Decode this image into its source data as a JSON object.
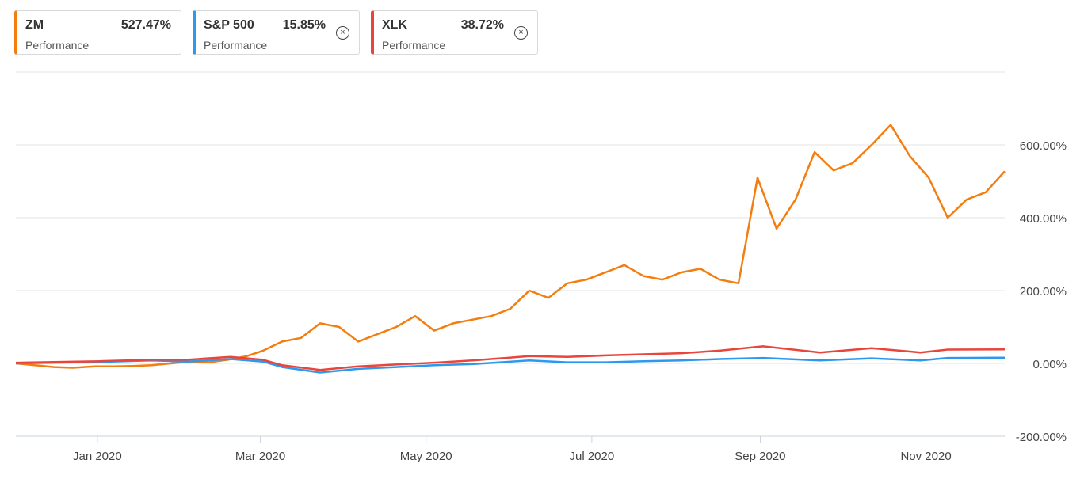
{
  "legend": [
    {
      "symbol": "ZM",
      "value": "527.47%",
      "sublabel": "Performance",
      "color": "#f47d0f",
      "removable": false
    },
    {
      "symbol": "S&P 500",
      "value": "15.85%",
      "sublabel": "Performance",
      "color": "#2c98f0",
      "removable": true
    },
    {
      "symbol": "XLK",
      "value": "38.72%",
      "sublabel": "Performance",
      "color": "#e8463c",
      "removable": true
    }
  ],
  "close_glyph": "⊗",
  "chart_data": {
    "type": "line",
    "x_labels": [
      "Jan 2020",
      "Mar 2020",
      "May 2020",
      "Jul 2020",
      "Sep 2020",
      "Nov 2020"
    ],
    "y_tick_labels": [
      "600.00%",
      "400.00%",
      "200.00%",
      "0.00%",
      "-200.00%"
    ],
    "y_ticks": [
      600,
      400,
      200,
      0,
      -200
    ],
    "ylim": [
      -200,
      800
    ],
    "grid": true,
    "series": [
      {
        "name": "ZM",
        "color": "#f47d0f",
        "points": [
          [
            "2019-12-02",
            0
          ],
          [
            "2019-12-09",
            -5
          ],
          [
            "2019-12-16",
            -10
          ],
          [
            "2019-12-23",
            -12
          ],
          [
            "2019-12-31",
            -8
          ],
          [
            "2020-01-07",
            -8
          ],
          [
            "2020-01-14",
            -7
          ],
          [
            "2020-01-21",
            -5
          ],
          [
            "2020-01-28",
            0
          ],
          [
            "2020-02-04",
            5
          ],
          [
            "2020-02-11",
            3
          ],
          [
            "2020-02-18",
            10
          ],
          [
            "2020-02-25",
            20
          ],
          [
            "2020-03-02",
            35
          ],
          [
            "2020-03-09",
            60
          ],
          [
            "2020-03-16",
            70
          ],
          [
            "2020-03-23",
            110
          ],
          [
            "2020-03-30",
            100
          ],
          [
            "2020-04-06",
            60
          ],
          [
            "2020-04-13",
            80
          ],
          [
            "2020-04-20",
            100
          ],
          [
            "2020-04-27",
            130
          ],
          [
            "2020-05-04",
            90
          ],
          [
            "2020-05-11",
            110
          ],
          [
            "2020-05-18",
            120
          ],
          [
            "2020-05-25",
            130
          ],
          [
            "2020-06-01",
            150
          ],
          [
            "2020-06-08",
            200
          ],
          [
            "2020-06-15",
            180
          ],
          [
            "2020-06-22",
            220
          ],
          [
            "2020-06-29",
            230
          ],
          [
            "2020-07-06",
            250
          ],
          [
            "2020-07-13",
            270
          ],
          [
            "2020-07-20",
            240
          ],
          [
            "2020-07-27",
            230
          ],
          [
            "2020-08-03",
            250
          ],
          [
            "2020-08-10",
            260
          ],
          [
            "2020-08-17",
            230
          ],
          [
            "2020-08-24",
            220
          ],
          [
            "2020-08-31",
            510
          ],
          [
            "2020-09-07",
            370
          ],
          [
            "2020-09-14",
            450
          ],
          [
            "2020-09-21",
            580
          ],
          [
            "2020-09-28",
            530
          ],
          [
            "2020-10-05",
            550
          ],
          [
            "2020-10-12",
            600
          ],
          [
            "2020-10-19",
            655
          ],
          [
            "2020-10-26",
            570
          ],
          [
            "2020-11-02",
            510
          ],
          [
            "2020-11-09",
            400
          ],
          [
            "2020-11-16",
            450
          ],
          [
            "2020-11-23",
            470
          ],
          [
            "2020-11-30",
            527.47
          ]
        ]
      },
      {
        "name": "S&P 500",
        "color": "#2c98f0",
        "points": [
          [
            "2019-12-02",
            0
          ],
          [
            "2019-12-16",
            2
          ],
          [
            "2020-01-02",
            4
          ],
          [
            "2020-01-21",
            8
          ],
          [
            "2020-02-03",
            5
          ],
          [
            "2020-02-19",
            12
          ],
          [
            "2020-03-02",
            5
          ],
          [
            "2020-03-09",
            -10
          ],
          [
            "2020-03-23",
            -25
          ],
          [
            "2020-04-06",
            -15
          ],
          [
            "2020-04-20",
            -10
          ],
          [
            "2020-05-04",
            -5
          ],
          [
            "2020-05-18",
            -2
          ],
          [
            "2020-06-08",
            8
          ],
          [
            "2020-06-22",
            3
          ],
          [
            "2020-07-06",
            3
          ],
          [
            "2020-07-20",
            6
          ],
          [
            "2020-08-03",
            8
          ],
          [
            "2020-08-17",
            12
          ],
          [
            "2020-09-02",
            15
          ],
          [
            "2020-09-23",
            8
          ],
          [
            "2020-10-12",
            14
          ],
          [
            "2020-10-30",
            8
          ],
          [
            "2020-11-09",
            15
          ],
          [
            "2020-11-30",
            15.85
          ]
        ]
      },
      {
        "name": "XLK",
        "color": "#e8463c",
        "points": [
          [
            "2019-12-02",
            2
          ],
          [
            "2019-12-16",
            4
          ],
          [
            "2020-01-02",
            6
          ],
          [
            "2020-01-21",
            10
          ],
          [
            "2020-02-03",
            10
          ],
          [
            "2020-02-19",
            18
          ],
          [
            "2020-03-02",
            10
          ],
          [
            "2020-03-09",
            -5
          ],
          [
            "2020-03-23",
            -18
          ],
          [
            "2020-04-06",
            -8
          ],
          [
            "2020-04-20",
            -3
          ],
          [
            "2020-05-04",
            2
          ],
          [
            "2020-05-18",
            8
          ],
          [
            "2020-06-08",
            20
          ],
          [
            "2020-06-22",
            18
          ],
          [
            "2020-07-06",
            22
          ],
          [
            "2020-07-20",
            25
          ],
          [
            "2020-08-03",
            28
          ],
          [
            "2020-08-17",
            35
          ],
          [
            "2020-09-02",
            47
          ],
          [
            "2020-09-23",
            30
          ],
          [
            "2020-10-12",
            42
          ],
          [
            "2020-10-30",
            30
          ],
          [
            "2020-11-09",
            38
          ],
          [
            "2020-11-30",
            38.72
          ]
        ]
      }
    ]
  }
}
